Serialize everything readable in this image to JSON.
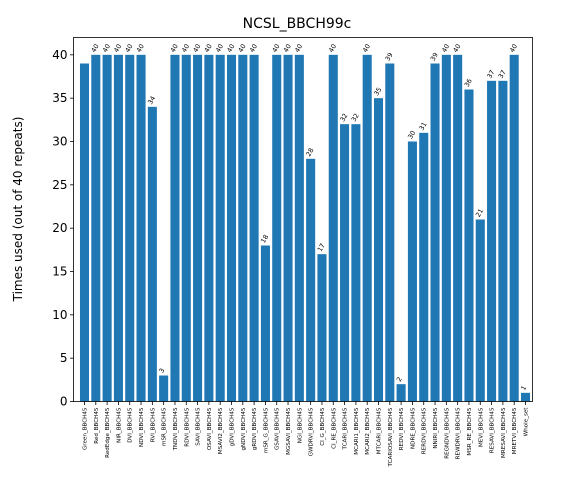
{
  "chart_data": {
    "type": "bar",
    "title": "NCSL_BBCH99c",
    "xlabel": "",
    "ylabel": "Times used (out of 40 repeats)",
    "ylim": [
      0,
      42
    ],
    "yticks": [
      0,
      5,
      10,
      15,
      20,
      25,
      30,
      35,
      40
    ],
    "grid": false,
    "bar_color": "#1f77b4",
    "categories": [
      "Green_BBCH45",
      "Red_BBCH45",
      "RedEdge_BBCH45",
      "NIR_BBCH45",
      "DVI_BBCH45",
      "NDVI_BBCH45",
      "RVI_BBCH45",
      "mSR_BBCH45",
      "TNDVI_BBCH45",
      "RDVI_BBCH45",
      "SAVI_BBCH45",
      "OSAVI_BBCH45",
      "MSAVI2_BBCH45",
      "gDVI_BBCH45",
      "gNDVI_BBCH45",
      "gRDVI_BBCH45",
      "mSR_G_BBCH45",
      "GSAVI_BBCH45",
      "MGSAVI_BBCH45",
      "NGI_BBCH45",
      "GWDRVI_BBCH45",
      "CI_G_BBCH45",
      "CI_RE_BBCH45",
      "TCARI_BBCH45",
      "MCARI1_BBCH45",
      "MCARI2_BBCH45",
      "MTCARI_BBCH45",
      "TCARIOSAVI_BBCH45",
      "REDVI_BBCH45",
      "NDRE_BBCH45",
      "RERDVI_BBCH45",
      "NNIRI_BBCH45",
      "REGNDVI_BBCH45",
      "REWDRVI_BBCH45",
      "MSR_RE_BBCH45",
      "MEVI_BBCH45",
      "RESAVI_BBCH45",
      "MRESAVI_BBCH45",
      "MRETVI_BBCH45",
      "Whole_set"
    ],
    "values": [
      39,
      40,
      40,
      40,
      40,
      40,
      34,
      3,
      40,
      40,
      40,
      40,
      40,
      40,
      40,
      40,
      18,
      40,
      40,
      40,
      28,
      17,
      40,
      32,
      32,
      40,
      35,
      39,
      2,
      30,
      31,
      39,
      40,
      40,
      36,
      21,
      37,
      37,
      40,
      1
    ],
    "data_labels": [
      "",
      "40",
      "40",
      "40",
      "40",
      "40",
      "34",
      "3",
      "40",
      "40",
      "40",
      "40",
      "40",
      "40",
      "40",
      "40",
      "18",
      "40",
      "40",
      "40",
      "28",
      "17",
      "40",
      "32",
      "32",
      "40",
      "35",
      "39",
      "2",
      "30",
      "31",
      "39",
      "40",
      "40",
      "36",
      "21",
      "37",
      "37",
      "40",
      "1"
    ]
  }
}
